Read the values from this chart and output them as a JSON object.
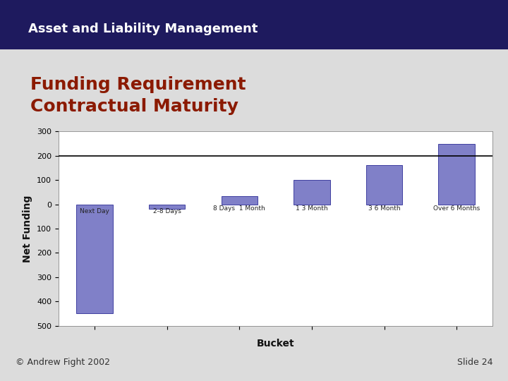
{
  "header_title": "Asset and Liability Management",
  "header_bg_color_top": "#1e1a5e",
  "header_bg_color_bot": "#3a3080",
  "slide_title_line1": "Funding Requirement",
  "slide_title_line2": "Contractual Maturity",
  "slide_title_color": "#8b1a00",
  "categories": [
    "Next Day",
    "2-8 Days",
    "8 Days  1 Month",
    "1 3 Month",
    "3 6 Month",
    "Over 6 Months"
  ],
  "values": [
    -450,
    -20,
    35,
    100,
    160,
    250
  ],
  "bar_color": "#8080c8",
  "bar_edgecolor": "#4040a0",
  "xlabel": "Bucket",
  "ylabel": "Net Funding",
  "ylim": [
    -500,
    300
  ],
  "ytick_values": [
    300,
    200,
    100,
    0,
    100,
    200,
    300,
    400,
    500
  ],
  "ytick_positions": [
    300,
    200,
    100,
    0,
    -100,
    -200,
    -300,
    -400,
    -500
  ],
  "hline_y": 200,
  "hline_color": "#000000",
  "footer_left": "© Andrew Fight 2002",
  "footer_right": "Slide 24",
  "bg_color": "#ffffff",
  "chart_bg_color": "#ffffff",
  "outer_bg_color": "#dcdcdc",
  "title_fontsize": 18,
  "axis_label_fontsize": 10,
  "tick_fontsize": 8,
  "header_fontsize": 13,
  "footer_fontsize": 9
}
